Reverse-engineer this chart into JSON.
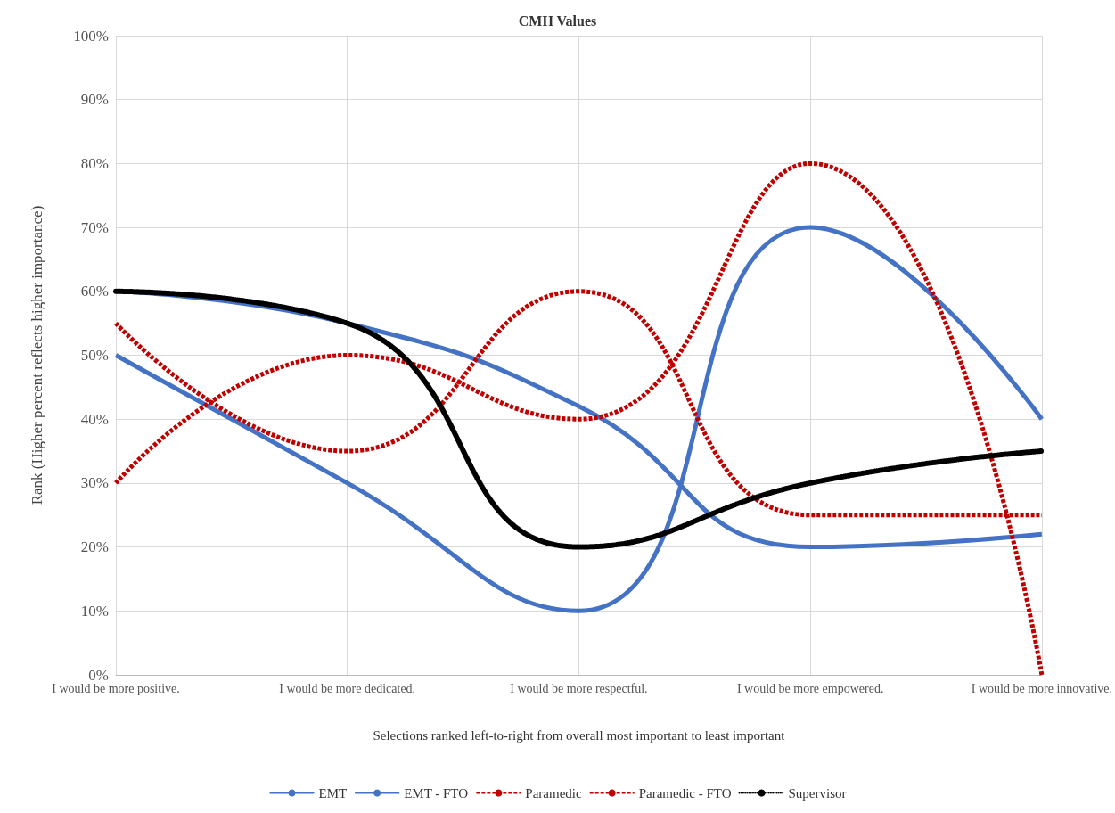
{
  "chart_data": {
    "type": "line",
    "title": "CMH Values",
    "xlabel": "Selections ranked left-to-right from overall most important to least important",
    "ylabel": "Rank (Higher percent reflects higher importance)",
    "categories": [
      "I would be more positive.",
      "I would be more dedicated.",
      "I would be more respectful.",
      "I would be more empowered.",
      "I would be more innovative."
    ],
    "series": [
      {
        "name": "EMT",
        "color": "#4472c4",
        "line_style": "solid",
        "values": [
          60,
          55,
          42,
          20,
          22
        ]
      },
      {
        "name": "EMT - FTO",
        "color": "#4472c4",
        "line_style": "solid",
        "values": [
          50,
          30,
          10,
          70,
          40
        ]
      },
      {
        "name": "Paramedic",
        "color": "#c00000",
        "line_style": "dashed",
        "values": [
          55,
          35,
          60,
          25,
          25
        ]
      },
      {
        "name": "Paramedic - FTO",
        "color": "#c00000",
        "line_style": "dashed",
        "values": [
          30,
          50,
          40,
          80,
          0
        ]
      },
      {
        "name": "Supervisor",
        "color": "#000000",
        "line_style": "dotted",
        "values": [
          60,
          55,
          20,
          30,
          35
        ]
      }
    ],
    "ylim": [
      0,
      100
    ],
    "yticks": [
      {
        "value": 0,
        "label": "0%"
      },
      {
        "value": 10,
        "label": "10%"
      },
      {
        "value": 20,
        "label": "20%"
      },
      {
        "value": 30,
        "label": "30%"
      },
      {
        "value": 40,
        "label": "40%"
      },
      {
        "value": 50,
        "label": "50%"
      },
      {
        "value": 60,
        "label": "60%"
      },
      {
        "value": 70,
        "label": "70%"
      },
      {
        "value": 80,
        "label": "80%"
      },
      {
        "value": 90,
        "label": "90%"
      },
      {
        "value": 100,
        "label": "100%"
      }
    ],
    "grid": true,
    "legend": "bottom",
    "marker": "none"
  }
}
